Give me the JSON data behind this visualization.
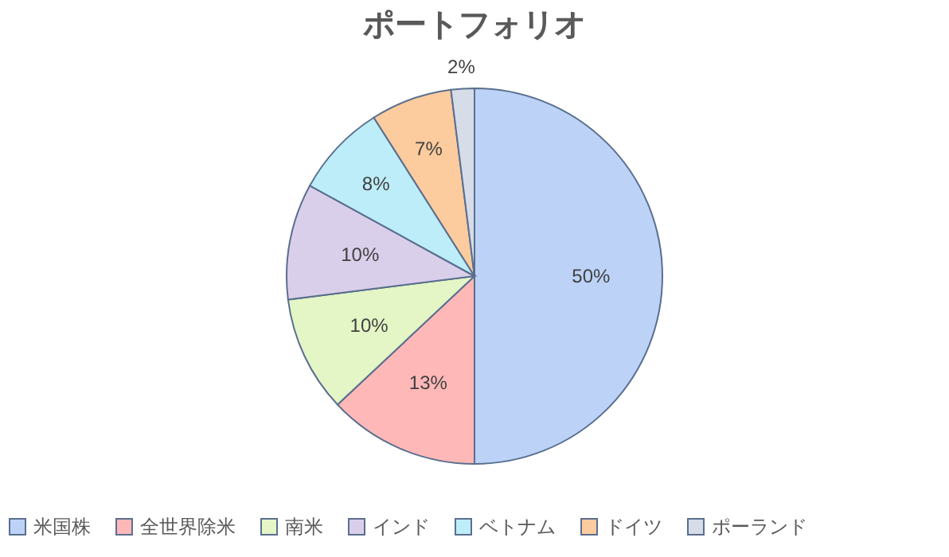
{
  "chart_data": {
    "type": "pie",
    "title": "ポートフォリオ",
    "categories": [
      "米国株",
      "全世界除米",
      "南米",
      "インド",
      "ベトナム",
      "ドイツ",
      "ポーランド"
    ],
    "values": [
      50,
      13,
      10,
      10,
      8,
      7,
      2
    ],
    "colors": [
      "#bcd3f7",
      "#ffb8b8",
      "#e4f5c6",
      "#dacfea",
      "#bdedf9",
      "#fccb9e",
      "#d6dde8"
    ],
    "value_labels": [
      "50%",
      "13%",
      "10%",
      "10%",
      "8%",
      "7%",
      "2%"
    ],
    "legend": "bottom"
  }
}
